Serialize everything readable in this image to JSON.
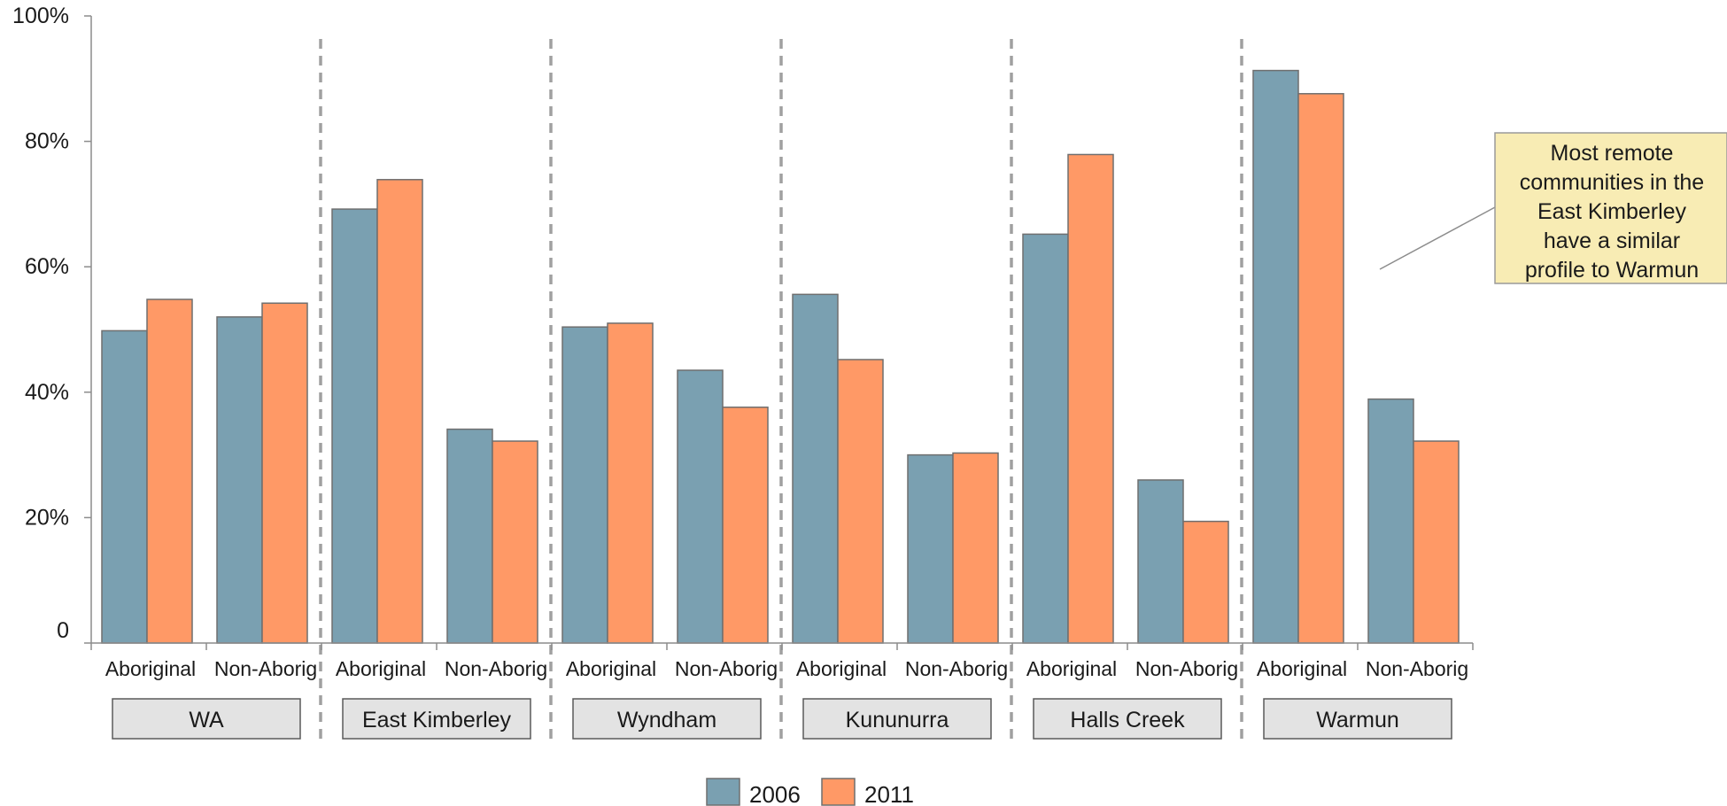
{
  "chart_data": {
    "type": "bar",
    "title": "",
    "xlabel": "",
    "ylabel": "",
    "ylim": [
      0,
      100
    ],
    "y_ticks": [
      {
        "value": 0,
        "label": "0"
      },
      {
        "value": 20,
        "label": "20%"
      },
      {
        "value": 40,
        "label": "40%"
      },
      {
        "value": 60,
        "label": "60%"
      },
      {
        "value": 80,
        "label": "80%"
      },
      {
        "value": 100,
        "label": "100%"
      }
    ],
    "grid": false,
    "legend_position": "bottom-center",
    "groups": [
      "WA",
      "East Kimberley",
      "Wyndham",
      "Kununurra",
      "Halls Creek",
      "Warmun"
    ],
    "subcategory_labels": [
      "Aboriginal",
      "Non-Aborig"
    ],
    "categories": [
      "WA Aboriginal",
      "WA Non-Aborig",
      "East Kimberley Aboriginal",
      "East Kimberley Non-Aborig",
      "Wyndham Aboriginal",
      "Wyndham Non-Aborig",
      "Kununurra Aboriginal",
      "Kununurra Non-Aborig",
      "Halls Creek Aboriginal",
      "Halls Creek Non-Aborig",
      "Warmun Aboriginal",
      "Warmun Non-Aborig"
    ],
    "series": [
      {
        "name": "2006",
        "color": "#7aa0b1",
        "values": [
          49.8,
          52.0,
          69.2,
          34.1,
          50.4,
          43.5,
          55.6,
          30.0,
          65.2,
          26.0,
          91.3,
          38.9
        ]
      },
      {
        "name": "2011",
        "color": "#ff9966",
        "values": [
          54.8,
          54.2,
          73.9,
          32.2,
          51.0,
          37.6,
          45.2,
          30.3,
          77.9,
          19.4,
          87.6,
          32.2
        ]
      }
    ],
    "annotation": {
      "lines": [
        "Most remote",
        "communities in the",
        "East Kimberley",
        "have a similar",
        "profile to Warmun"
      ],
      "background": "#f8ecb4"
    },
    "bar_outline_color": "#6f6f6f",
    "divider_color": "#a0a0a0",
    "group_label_background": "#e3e3e3"
  }
}
